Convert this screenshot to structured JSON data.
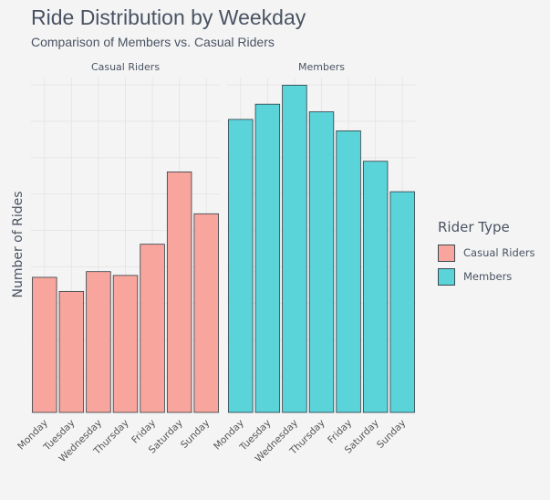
{
  "title": "Ride Distribution by Weekday",
  "subtitle": "Comparison of Members vs. Casual Riders",
  "legend": {
    "title": "Rider Type",
    "items": [
      {
        "label": "Casual Riders",
        "color": "#f8a59d"
      },
      {
        "label": "Members",
        "color": "#5ad3d9"
      }
    ]
  },
  "chart_data": {
    "type": "bar",
    "title": "Ride Distribution by Weekday",
    "subtitle": "Comparison of Members vs. Casual Riders",
    "xlabel": "",
    "ylabel": "Number of Rides",
    "y_tick_labels_shown": false,
    "ylim": [
      0,
      8.8
    ],
    "grid": true,
    "legend_position": "right",
    "facets": [
      "Casual Riders",
      "Members"
    ],
    "categories": [
      "Monday",
      "Tuesday",
      "Wednesday",
      "Thursday",
      "Friday",
      "Saturday",
      "Sunday"
    ],
    "series": [
      {
        "name": "Casual Riders",
        "color": "#f8a59d",
        "values": [
          3.55,
          3.18,
          3.7,
          3.6,
          4.42,
          6.32,
          5.22
        ]
      },
      {
        "name": "Members",
        "color": "#5ad3d9",
        "values": [
          7.7,
          8.1,
          8.6,
          7.9,
          7.4,
          6.6,
          5.8
        ]
      }
    ]
  }
}
